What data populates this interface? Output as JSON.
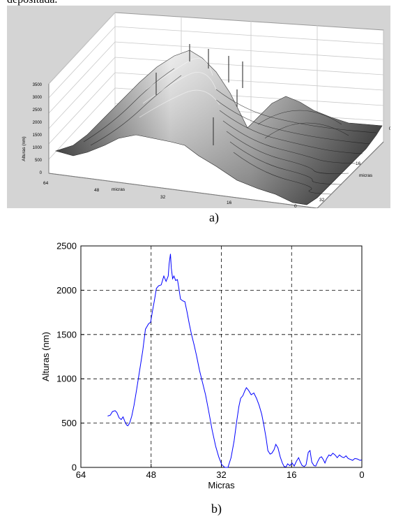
{
  "header": {
    "text": "depositada."
  },
  "figure_a": {
    "caption": "a)",
    "z_label": "Alturas (nm)",
    "x_label": "micras",
    "y_label": "micras",
    "z_ticks": [
      "3500",
      "3000",
      "2500",
      "2000",
      "1500",
      "1000",
      "500",
      "0"
    ],
    "x_ticks": [
      "64",
      "48",
      "32",
      "16",
      "0"
    ],
    "y_ticks": [
      "0",
      "16",
      "32"
    ]
  },
  "figure_b": {
    "caption": "b)"
  },
  "chart_data": [
    {
      "type": "surface",
      "zlabel": "Alturas (nm)",
      "xlabel": "micras",
      "ylabel": "micras",
      "zlim": [
        0,
        3500
      ],
      "xlim": [
        64,
        0
      ],
      "ylim": [
        0,
        32
      ]
    },
    {
      "type": "line",
      "xlabel": "Micras",
      "ylabel": "Alturas (nm)",
      "xlim": [
        64,
        0
      ],
      "ylim": [
        0,
        2500
      ],
      "x_ticks": [
        64,
        48,
        32,
        16,
        0
      ],
      "y_ticks": [
        0,
        500,
        1000,
        1500,
        2000,
        2500
      ],
      "grid": true,
      "grid_style": "dashed",
      "series_color": "#0000ff",
      "series": [
        {
          "x": [
            57.9,
            57.3,
            56.8,
            56.2,
            55.8,
            55.3,
            54.8,
            54.4,
            54.0,
            53.6,
            53.3,
            52.9,
            52.4,
            51.9,
            51.3,
            50.6,
            49.9,
            49.3,
            48.6,
            48.1,
            47.7,
            47.2,
            46.8,
            46.3,
            45.7,
            45.1,
            44.6,
            44.1,
            43.9,
            43.6,
            43.4,
            43.1,
            42.8,
            42.4,
            42.0,
            41.7,
            41.3,
            40.8,
            40.3,
            39.8,
            39.3,
            38.8,
            38.2,
            37.6,
            37.0,
            36.3,
            35.6,
            34.9,
            34.1,
            33.3,
            32.6,
            31.9,
            31.2,
            30.5,
            29.8,
            29.1,
            28.5,
            28.0,
            27.6,
            27.1,
            26.7,
            26.3,
            25.8,
            25.2,
            24.6,
            24.0,
            23.4,
            22.8,
            22.3,
            21.8,
            21.4,
            20.9,
            20.5,
            20.0,
            19.6,
            19.1,
            18.6,
            18.1,
            17.7,
            17.3,
            16.9,
            16.4,
            15.9,
            15.4,
            14.9,
            14.4,
            14.0,
            13.6,
            13.1,
            12.7,
            12.2,
            11.8,
            11.4,
            10.9,
            10.5,
            10.0,
            9.6,
            9.2,
            8.8,
            8.4,
            8.0,
            7.5,
            7.1,
            6.6,
            6.1,
            5.6,
            5.1,
            4.6,
            4.1,
            3.6,
            3.1,
            2.6,
            2.1,
            1.6,
            1.0,
            0.4,
            0.0
          ],
          "y": [
            580,
            590,
            630,
            640,
            620,
            560,
            540,
            570,
            520,
            480,
            470,
            500,
            580,
            700,
            880,
            1100,
            1320,
            1560,
            1620,
            1640,
            1760,
            1900,
            2020,
            2050,
            2060,
            2160,
            2100,
            2160,
            2300,
            2410,
            2250,
            2130,
            2160,
            2110,
            2120,
            2030,
            1900,
            1880,
            1870,
            1750,
            1620,
            1500,
            1380,
            1250,
            1100,
            960,
            820,
            640,
            420,
            240,
            120,
            30,
            0,
            0,
            110,
            300,
            520,
            690,
            780,
            810,
            860,
            900,
            870,
            820,
            840,
            780,
            700,
            600,
            470,
            330,
            190,
            150,
            160,
            200,
            260,
            220,
            120,
            50,
            10,
            5,
            40,
            20,
            50,
            15,
            70,
            110,
            60,
            20,
            10,
            30,
            170,
            190,
            60,
            20,
            15,
            70,
            110,
            120,
            90,
            50,
            100,
            140,
            130,
            160,
            140,
            110,
            140,
            120,
            110,
            130,
            100,
            90,
            80,
            100,
            95,
            80,
            85
          ]
        }
      ]
    }
  ]
}
